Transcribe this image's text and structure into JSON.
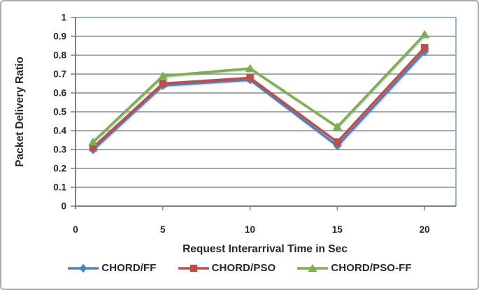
{
  "theme": {
    "background": "#FFFFFF",
    "frame_border": "#ABABAB",
    "grid_color": "#8C8C8C",
    "axis_color": "#7F7F7F",
    "plot_border_color": "#95B3D7",
    "text_color": "#26262E"
  },
  "chart_data": {
    "type": "line",
    "title": "",
    "xlabel": "Request Interarrival Time in Sec",
    "ylabel": "Packet Delivery Ratio",
    "x": [
      1,
      5,
      10,
      15,
      20
    ],
    "x_ticks": [
      "0",
      "5",
      "10",
      "15",
      "20"
    ],
    "y_ticks": [
      "1",
      "0.9",
      "0.8",
      "0.7",
      "0.6",
      "0.5",
      "0.4",
      "0.3",
      "0.2",
      "0.1",
      "0"
    ],
    "xlim": [
      0,
      21.8
    ],
    "ylim": [
      0,
      1
    ],
    "grid": "horizontal-only",
    "legend_position": "bottom",
    "series": [
      {
        "name": "CHORD/FF",
        "marker": "diamond",
        "color": "#4F81BD",
        "values": [
          0.3,
          0.64,
          0.67,
          0.32,
          0.82
        ]
      },
      {
        "name": "CHORD/PSO",
        "marker": "square",
        "color": "#BF4E4A",
        "values": [
          0.31,
          0.65,
          0.68,
          0.34,
          0.84
        ]
      },
      {
        "name": "CHORD/PSO-FF",
        "marker": "triangle",
        "color": "#7CAF4D",
        "values": [
          0.34,
          0.69,
          0.73,
          0.42,
          0.91
        ]
      }
    ]
  }
}
